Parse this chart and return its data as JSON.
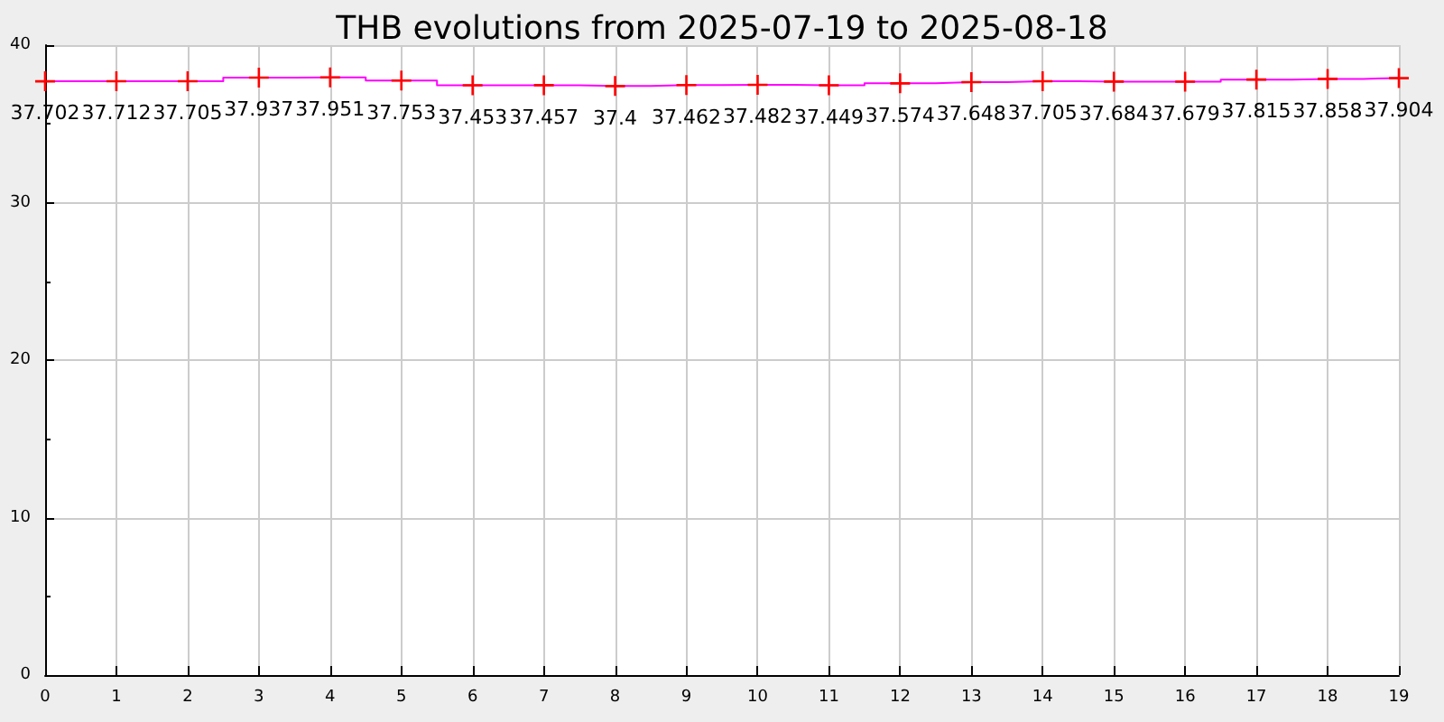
{
  "chart_data": {
    "type": "step",
    "title": "THB evolutions from 2025-07-19 to 2025-08-18",
    "x": [
      0,
      1,
      2,
      3,
      4,
      5,
      6,
      7,
      8,
      9,
      10,
      11,
      12,
      13,
      14,
      15,
      16,
      17,
      18,
      19
    ],
    "series": [
      {
        "color": "#ff00ff",
        "values": [
          37.702,
          37.712,
          37.705,
          37.937,
          37.951,
          37.753,
          37.453,
          37.457,
          37.4,
          37.462,
          37.482,
          37.449,
          37.574,
          37.648,
          37.705,
          37.684,
          37.679,
          37.815,
          37.858,
          37.904
        ]
      }
    ],
    "xlim": [
      0,
      19
    ],
    "xticks": [
      0,
      1,
      2,
      3,
      4,
      5,
      6,
      7,
      8,
      9,
      10,
      11,
      12,
      13,
      14,
      15,
      16,
      17,
      18,
      19
    ],
    "ylim": [
      0,
      40
    ],
    "yticks": [
      0,
      10,
      20,
      30,
      40
    ],
    "grid": true,
    "marker": "cross",
    "data_labels": true
  }
}
